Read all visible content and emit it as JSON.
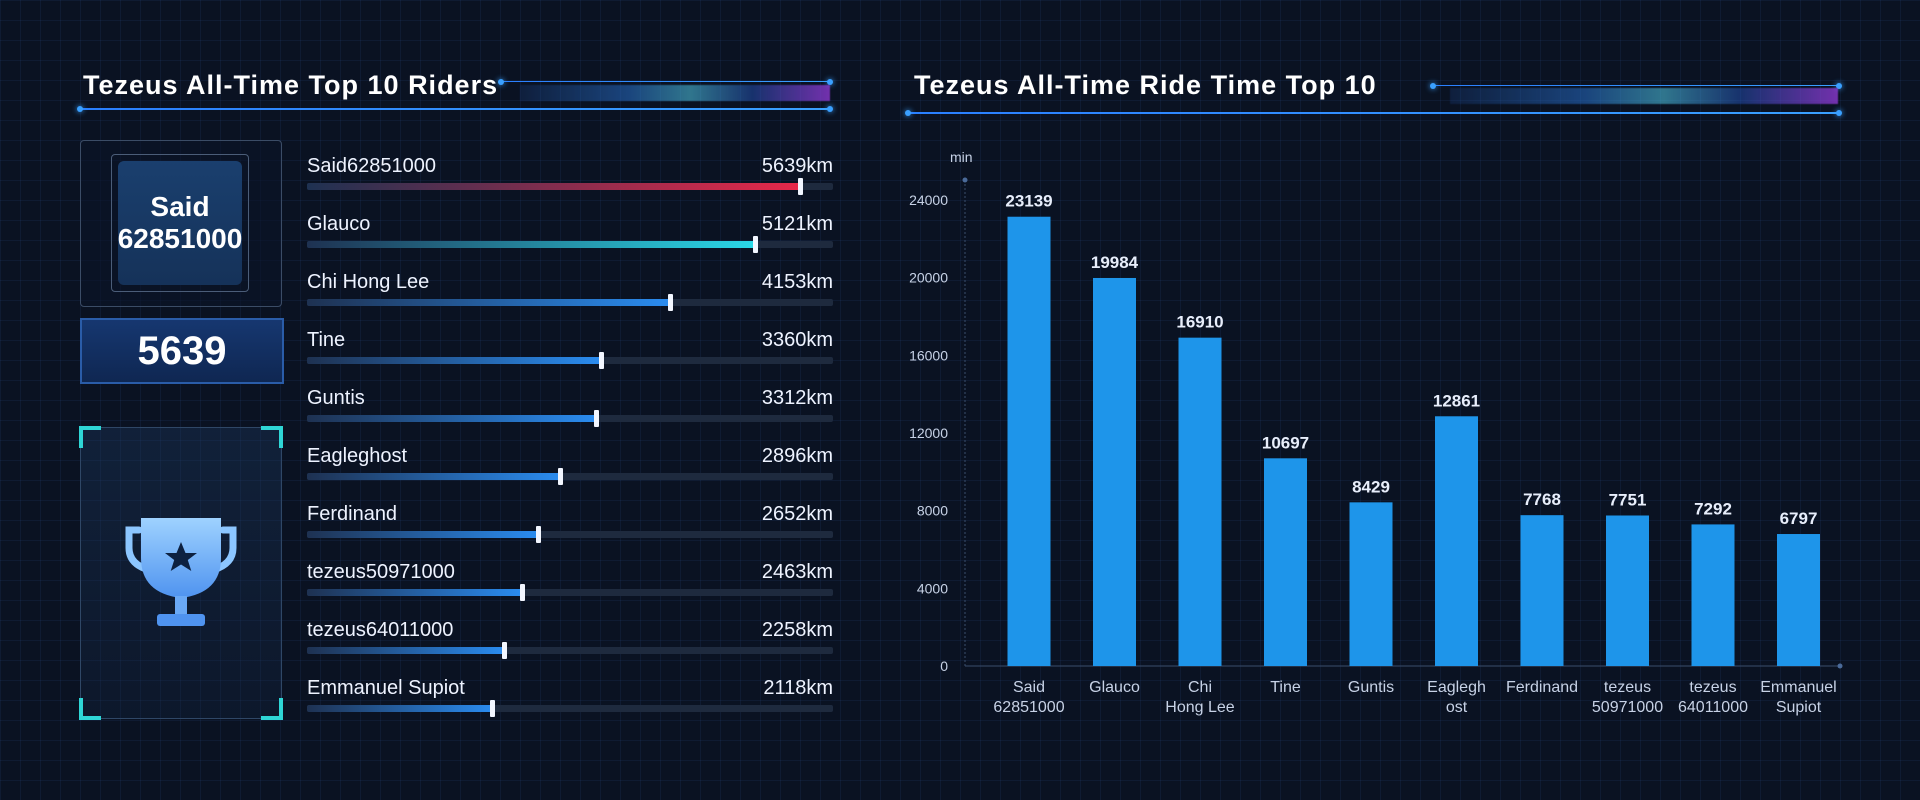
{
  "left_panel": {
    "title": "Tezeus All-Time Top 10 Riders",
    "top_rider": {
      "name_line1": "Said",
      "name_line2": "62851000",
      "score": "5639"
    },
    "riders": [
      {
        "name": "Said62851000",
        "distance": "5639km",
        "value": 5639,
        "color": "#e8284a"
      },
      {
        "name": "Glauco",
        "distance": "5121km",
        "value": 5121,
        "color": "#2ad8e8"
      },
      {
        "name": "Chi Hong Lee",
        "distance": "4153km",
        "value": 4153,
        "color": "#2a8cf0"
      },
      {
        "name": "Tine",
        "distance": "3360km",
        "value": 3360,
        "color": "#2a8cf0"
      },
      {
        "name": "Guntis",
        "distance": "3312km",
        "value": 3312,
        "color": "#2a8cf0"
      },
      {
        "name": "Eagleghost",
        "distance": "2896km",
        "value": 2896,
        "color": "#2a8cf0"
      },
      {
        "name": "Ferdinand",
        "distance": "2652km",
        "value": 2652,
        "color": "#2a8cf0"
      },
      {
        "name": "tezeus50971000",
        "distance": "2463km",
        "value": 2463,
        "color": "#2a8cf0"
      },
      {
        "name": "tezeus64011000",
        "distance": "2258km",
        "value": 2258,
        "color": "#2a8cf0"
      },
      {
        "name": "Emmanuel Supiot",
        "distance": "2118km",
        "value": 2118,
        "color": "#2a8cf0"
      }
    ]
  },
  "chart_data": {
    "type": "bar",
    "title": "Tezeus All-Time Ride Time Top 10",
    "ylabel": "min",
    "ylim": [
      0,
      24000
    ],
    "yticks": [
      0,
      4000,
      8000,
      12000,
      16000,
      20000,
      24000
    ],
    "categories": [
      [
        "Said",
        "62851000"
      ],
      [
        "Glauco"
      ],
      [
        "Chi",
        "Hong Lee"
      ],
      [
        "Tine"
      ],
      [
        "Guntis"
      ],
      [
        "Eagleghost"
      ],
      [
        "Ferdinand"
      ],
      [
        "tezeus",
        "50971000"
      ],
      [
        "tezeus",
        "64011000"
      ],
      [
        "Emmanuel",
        "Supiot"
      ]
    ],
    "values": [
      23139,
      19984,
      16910,
      10697,
      8429,
      12861,
      7768,
      7751,
      7292,
      6797
    ],
    "bar_color": "#1e95ea",
    "grid": false
  }
}
